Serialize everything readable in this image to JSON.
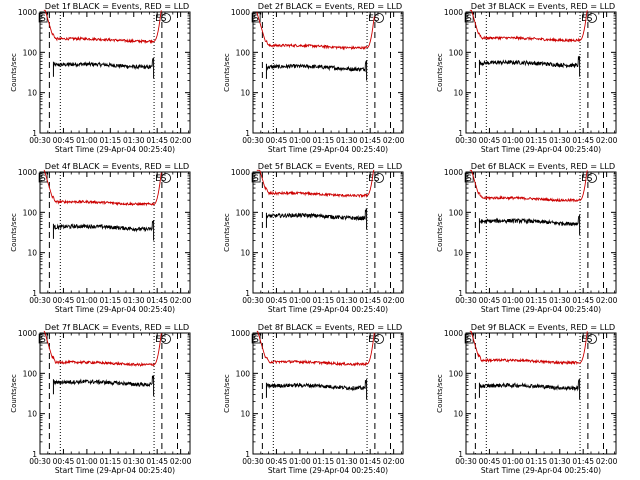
{
  "x_ticks": [
    "00:30",
    "00:45",
    "01:00",
    "01:15",
    "01:30",
    "01:45",
    "02:00"
  ],
  "y_ticks": [
    "1",
    "10",
    "100",
    "1000"
  ],
  "ylabel": "Counts/sec",
  "xlabel": "Start Time (29-Apr-04 00:25:40)",
  "markers": {
    "left": "S",
    "right": "ES"
  },
  "colors": {
    "events": "#000000",
    "lld": "#cc0000",
    "axes": "#000000"
  },
  "chart_data": [
    {
      "type": "line",
      "title": "Det 1f BLACK = Events, RED = LLD",
      "xlim": [
        "00:30",
        "02:06"
      ],
      "ylim": [
        1,
        1000
      ],
      "yscale": "log",
      "series": [
        {
          "name": "BLACK = Events",
          "level": 45
        },
        {
          "name": "RED = LLD",
          "level": 190
        }
      ],
      "dashed_lines": [
        "00:36",
        "01:48",
        "01:58"
      ],
      "dotted_lines": [
        "00:43",
        "01:43"
      ],
      "burst_intervals": [
        [
          "00:32",
          "00:38"
        ],
        [
          "01:43",
          "01:48"
        ]
      ]
    },
    {
      "type": "line",
      "title": "Det 2f BLACK = Events, RED = LLD",
      "xlim": [
        "00:30",
        "02:06"
      ],
      "ylim": [
        1,
        1000
      ],
      "yscale": "log",
      "series": [
        {
          "name": "BLACK = Events",
          "level": 40
        },
        {
          "name": "RED = LLD",
          "level": 130
        }
      ],
      "dashed_lines": [
        "00:36",
        "01:48",
        "01:58"
      ],
      "dotted_lines": [
        "00:43",
        "01:43"
      ],
      "burst_intervals": [
        [
          "00:32",
          "00:38"
        ],
        [
          "01:43",
          "01:48"
        ]
      ]
    },
    {
      "type": "line",
      "title": "Det 3f BLACK = Events, RED = LLD",
      "xlim": [
        "00:30",
        "02:06"
      ],
      "ylim": [
        1,
        1000
      ],
      "yscale": "log",
      "series": [
        {
          "name": "BLACK = Events",
          "level": 50
        },
        {
          "name": "RED = LLD",
          "level": 200
        }
      ],
      "dashed_lines": [
        "00:36",
        "01:48",
        "01:58"
      ],
      "dotted_lines": [
        "00:43",
        "01:43"
      ],
      "burst_intervals": [
        [
          "00:32",
          "00:38"
        ],
        [
          "01:43",
          "01:48"
        ]
      ]
    },
    {
      "type": "line",
      "title": "Det 4f BLACK = Events, RED = LLD",
      "xlim": [
        "00:30",
        "02:06"
      ],
      "ylim": [
        1,
        1000
      ],
      "yscale": "log",
      "series": [
        {
          "name": "BLACK = Events",
          "level": 40
        },
        {
          "name": "RED = LLD",
          "level": 160
        }
      ],
      "dashed_lines": [
        "00:36",
        "01:48",
        "01:58"
      ],
      "dotted_lines": [
        "00:43",
        "01:43"
      ],
      "burst_intervals": [
        [
          "00:32",
          "00:38"
        ],
        [
          "01:43",
          "01:48"
        ]
      ]
    },
    {
      "type": "line",
      "title": "Det 5f BLACK = Events, RED = LLD",
      "xlim": [
        "00:30",
        "02:06"
      ],
      "ylim": [
        1,
        1000
      ],
      "yscale": "log",
      "series": [
        {
          "name": "BLACK = Events",
          "level": 75
        },
        {
          "name": "RED = LLD",
          "level": 260
        }
      ],
      "dashed_lines": [
        "00:36",
        "01:48",
        "01:58"
      ],
      "dotted_lines": [
        "00:43",
        "01:43"
      ],
      "burst_intervals": [
        [
          "00:32",
          "00:38"
        ],
        [
          "01:43",
          "01:48"
        ]
      ]
    },
    {
      "type": "line",
      "title": "Det 6f BLACK = Events, RED = LLD",
      "xlim": [
        "00:30",
        "02:06"
      ],
      "ylim": [
        1,
        1000
      ],
      "yscale": "log",
      "series": [
        {
          "name": "BLACK = Events",
          "level": 55
        },
        {
          "name": "RED = LLD",
          "level": 200
        }
      ],
      "dashed_lines": [
        "00:36",
        "01:48",
        "01:58"
      ],
      "dotted_lines": [
        "00:43",
        "01:43"
      ],
      "burst_intervals": [
        [
          "00:32",
          "00:38"
        ],
        [
          "01:43",
          "01:48"
        ]
      ]
    },
    {
      "type": "line",
      "title": "Det 7f BLACK = Events, RED = LLD",
      "xlim": [
        "00:30",
        "02:06"
      ],
      "ylim": [
        1,
        1000
      ],
      "yscale": "log",
      "series": [
        {
          "name": "BLACK = Events",
          "level": 55
        },
        {
          "name": "RED = LLD",
          "level": 165
        }
      ],
      "dashed_lines": [
        "00:36",
        "01:48",
        "01:58"
      ],
      "dotted_lines": [
        "00:43",
        "01:43"
      ],
      "burst_intervals": [
        [
          "00:32",
          "00:38"
        ],
        [
          "01:43",
          "01:48"
        ]
      ]
    },
    {
      "type": "line",
      "title": "Det 8f BLACK = Events, RED = LLD",
      "xlim": [
        "00:30",
        "02:06"
      ],
      "ylim": [
        1,
        1000
      ],
      "yscale": "log",
      "series": [
        {
          "name": "BLACK = Events",
          "level": 45
        },
        {
          "name": "RED = LLD",
          "level": 170
        }
      ],
      "dashed_lines": [
        "00:36",
        "01:48",
        "01:58"
      ],
      "dotted_lines": [
        "00:43",
        "01:43"
      ],
      "burst_intervals": [
        [
          "00:32",
          "00:38"
        ],
        [
          "01:43",
          "01:48"
        ]
      ]
    },
    {
      "type": "line",
      "title": "Det 9f BLACK = Events, RED = LLD",
      "xlim": [
        "00:30",
        "02:06"
      ],
      "ylim": [
        1,
        1000
      ],
      "yscale": "log",
      "series": [
        {
          "name": "BLACK = Events",
          "level": 45
        },
        {
          "name": "RED = LLD",
          "level": 185
        }
      ],
      "dashed_lines": [
        "00:36",
        "01:48",
        "01:58"
      ],
      "dotted_lines": [
        "00:43",
        "01:43"
      ],
      "burst_intervals": [
        [
          "00:32",
          "00:38"
        ],
        [
          "01:43",
          "01:48"
        ]
      ]
    }
  ]
}
